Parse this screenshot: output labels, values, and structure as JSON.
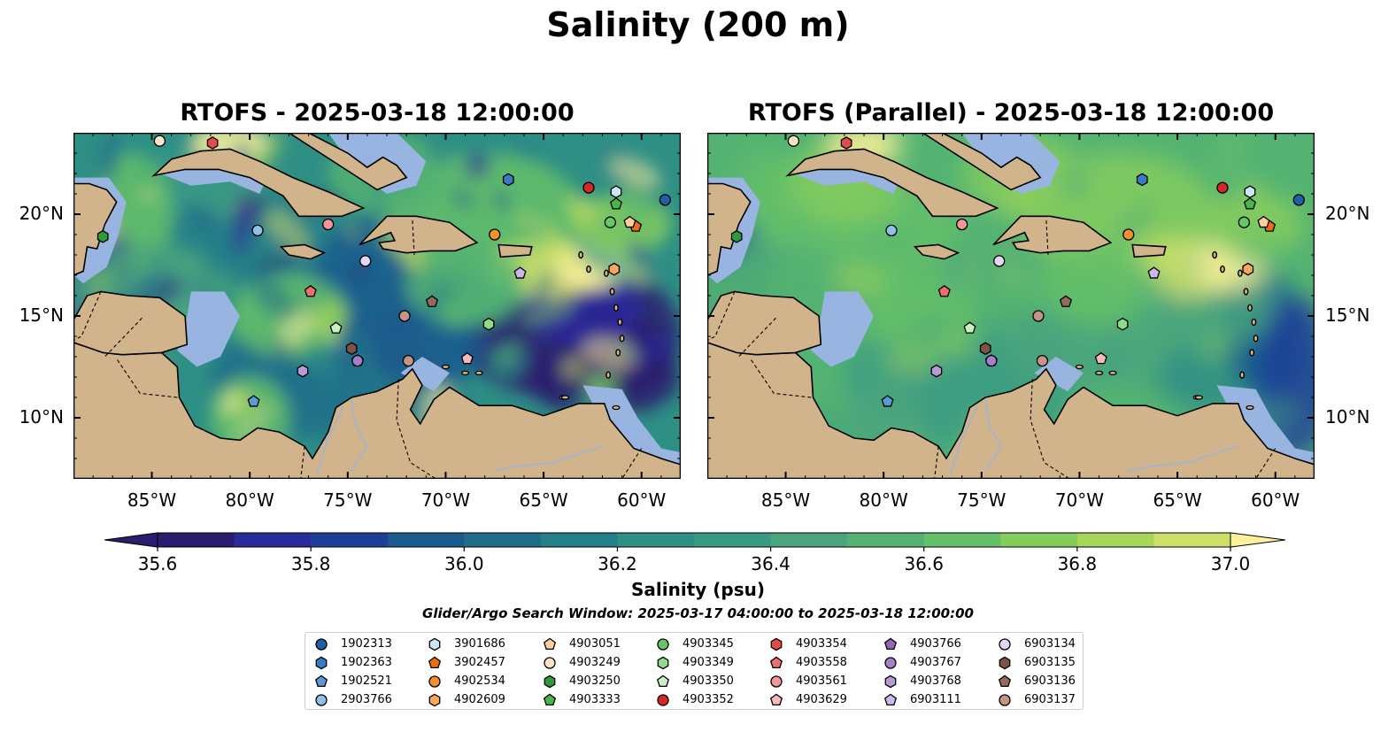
{
  "figure": {
    "suptitle": "Salinity (200 m)",
    "window_text": "Glider/Argo Search Window: 2025-03-17 04:00:00 to 2025-03-18 12:00:00"
  },
  "panels": [
    {
      "title": "RTOFS - 2025-03-18 12:00:00"
    },
    {
      "title": "RTOFS (Parallel) - 2025-03-18 12:00:00"
    }
  ],
  "axes": {
    "lon_ticks": [
      "85°W",
      "80°W",
      "75°W",
      "70°W",
      "65°W",
      "60°W"
    ],
    "lat_ticks": [
      "20°N",
      "15°N",
      "10°N"
    ],
    "lon_values": [
      -85,
      -80,
      -75,
      -70,
      -65,
      -60
    ],
    "lat_values": [
      20,
      15,
      10
    ],
    "lon_range": [
      -89,
      -58
    ],
    "lat_range": [
      7,
      24
    ]
  },
  "colorbar": {
    "label": "Salinity (psu)",
    "ticks": [
      "35.6",
      "35.8",
      "36.0",
      "36.2",
      "36.4",
      "36.6",
      "36.8",
      "37.0"
    ],
    "tick_values": [
      35.6,
      35.8,
      36.0,
      36.2,
      36.4,
      36.6,
      36.8,
      37.0
    ],
    "range": [
      35.6,
      37.0
    ],
    "colors": [
      "#2a1d6e",
      "#2b2a9b",
      "#1e3f98",
      "#1b5a8e",
      "#1e6e89",
      "#257f87",
      "#2e8f85",
      "#3b9a84",
      "#4aa57c",
      "#54b372",
      "#65c069",
      "#84cc5e",
      "#a8d659",
      "#cfe06a",
      "#fdf19c"
    ],
    "land_color": "#d2b48c",
    "shelf_color": "#98b4e0"
  },
  "floats": [
    {
      "id": "1902313",
      "marker": "circle",
      "color": "#1f5fa8",
      "lon": -58.8,
      "lat": 20.7
    },
    {
      "id": "1902363",
      "marker": "hexagon",
      "color": "#3a7bc8",
      "lon": -66.8,
      "lat": 21.7
    },
    {
      "id": "1902521",
      "marker": "pentagon",
      "color": "#5a9ad8",
      "lon": -79.8,
      "lat": 10.8
    },
    {
      "id": "2903766",
      "marker": "circle",
      "color": "#8fc0e8",
      "lon": -79.6,
      "lat": 19.2
    },
    {
      "id": "3901686",
      "marker": "hexagon",
      "color": "#cde6f6",
      "lon": -61.3,
      "lat": 21.1
    },
    {
      "id": "3902457",
      "marker": "pentagon",
      "color": "#ec6d13",
      "lon": -60.3,
      "lat": 19.4
    },
    {
      "id": "4902534",
      "marker": "circle",
      "color": "#f48e2f",
      "lon": -67.5,
      "lat": 19.0
    },
    {
      "id": "4902609",
      "marker": "hexagon",
      "color": "#f8a75b",
      "lon": -61.4,
      "lat": 17.3
    },
    {
      "id": "4903051",
      "marker": "pentagon",
      "color": "#fbcf9b",
      "lon": -60.6,
      "lat": 19.6
    },
    {
      "id": "4903249",
      "marker": "circle",
      "color": "#fde4c6",
      "lon": -84.6,
      "lat": 23.6
    },
    {
      "id": "4903250",
      "marker": "hexagon",
      "color": "#2e9a3a",
      "lon": -87.5,
      "lat": 18.9
    },
    {
      "id": "4903333",
      "marker": "pentagon",
      "color": "#48b648",
      "lon": -61.3,
      "lat": 20.5
    },
    {
      "id": "4903345",
      "marker": "circle",
      "color": "#66c764",
      "lon": -61.6,
      "lat": 19.6
    },
    {
      "id": "4903349",
      "marker": "hexagon",
      "color": "#8edc8a",
      "lon": -67.8,
      "lat": 14.6
    },
    {
      "id": "4903350",
      "marker": "pentagon",
      "color": "#c8f2c2",
      "lon": -75.6,
      "lat": 14.4
    },
    {
      "id": "4903352",
      "marker": "circle",
      "color": "#d62728",
      "lon": -62.7,
      "lat": 21.3
    },
    {
      "id": "4903354",
      "marker": "hexagon",
      "color": "#e34a4a",
      "lon": -81.9,
      "lat": 23.5
    },
    {
      "id": "4903558",
      "marker": "pentagon",
      "color": "#ee6d6d",
      "lon": -76.9,
      "lat": 16.2
    },
    {
      "id": "4903561",
      "marker": "circle",
      "color": "#f59595",
      "lon": -76.0,
      "lat": 19.5
    },
    {
      "id": "4903629",
      "marker": "pentagon",
      "color": "#f9b9b9",
      "lon": -68.9,
      "lat": 12.9
    },
    {
      "id": "4903766",
      "marker": "pentagon",
      "color": "#9467bd",
      "lon": -74.5,
      "lat": 12.8
    },
    {
      "id": "4903767",
      "marker": "circle",
      "color": "#a57fcc",
      "lon": -74.5,
      "lat": 12.8
    },
    {
      "id": "4903768",
      "marker": "hexagon",
      "color": "#b99ad8",
      "lon": -77.3,
      "lat": 12.3
    },
    {
      "id": "6903111",
      "marker": "pentagon",
      "color": "#cdb6e8",
      "lon": -66.2,
      "lat": 17.1
    },
    {
      "id": "6903134",
      "marker": "circle",
      "color": "#e6d6f6",
      "lon": -74.1,
      "lat": 17.7
    },
    {
      "id": "6903135",
      "marker": "hexagon",
      "color": "#7b5447",
      "lon": -74.8,
      "lat": 13.4
    },
    {
      "id": "6903136",
      "marker": "pentagon",
      "color": "#946a5b",
      "lon": -70.7,
      "lat": 15.7
    },
    {
      "id": "6903137",
      "marker": "circle",
      "color": "#c49486",
      "lon": -72.1,
      "lat": 15.0
    }
  ],
  "extra_markers": [
    {
      "marker": "circle",
      "color": "#c49486",
      "lon": -71.9,
      "lat": 12.8
    }
  ]
}
